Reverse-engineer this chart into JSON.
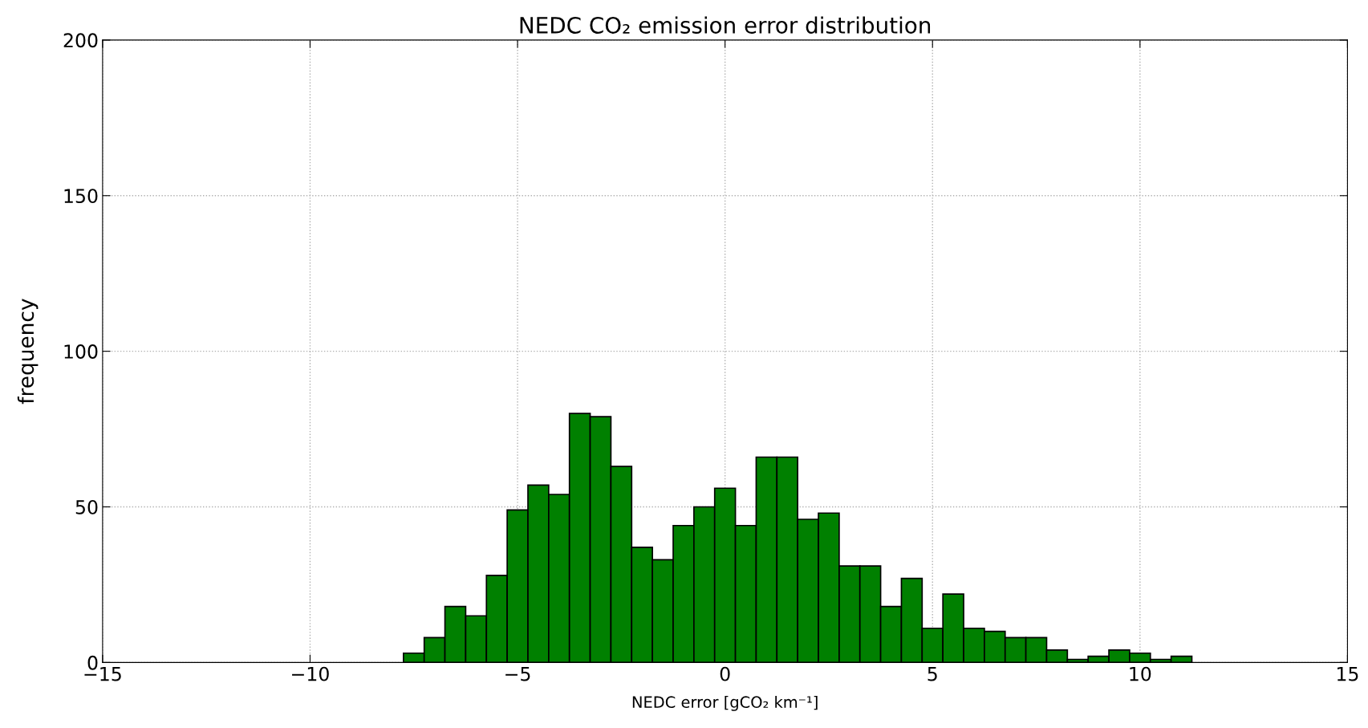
{
  "chart_data": {
    "type": "histogram",
    "title": "NEDC CO₂ emission error distribution",
    "xlabel": "NEDC error [gCO₂ km⁻¹]",
    "ylabel": "frequency",
    "bins": [
      -7.75,
      -7.25,
      -6.75,
      -6.25,
      -5.75,
      -5.25,
      -4.75,
      -4.25,
      -3.75,
      -3.25,
      -2.75,
      -2.25,
      -1.75,
      -1.25,
      -0.75,
      -0.25,
      0.25,
      0.75,
      1.25,
      1.75,
      2.25,
      2.75,
      3.25,
      3.75,
      4.25,
      4.75,
      5.25,
      5.75,
      6.25,
      6.75,
      7.25,
      7.75,
      8.25,
      8.75,
      9.25,
      9.75,
      10.25,
      10.75,
      11.25
    ],
    "values": [
      3,
      8,
      18,
      15,
      28,
      49,
      57,
      54,
      80,
      79,
      63,
      37,
      33,
      44,
      50,
      56,
      44,
      66,
      66,
      46,
      48,
      31,
      31,
      18,
      27,
      11,
      22,
      11,
      10,
      8,
      8,
      4,
      1,
      2,
      4,
      3,
      1,
      2
    ],
    "color": "#008000",
    "xlim": [
      -15,
      15
    ],
    "xticks": [
      {
        "value": -15,
        "label": "−15"
      },
      {
        "value": -10,
        "label": "−10"
      },
      {
        "value": -5,
        "label": "−5"
      },
      0,
      5,
      10,
      15
    ],
    "ylim": [
      0,
      200
    ],
    "yticks": [
      0,
      50,
      100,
      150,
      200
    ],
    "grid": true,
    "line_style": "dotted"
  }
}
